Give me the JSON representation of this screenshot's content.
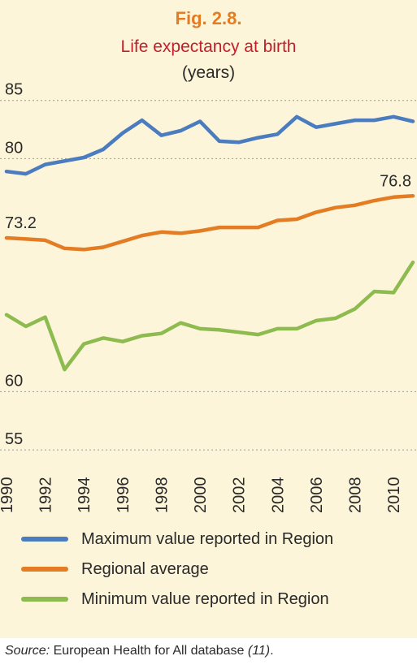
{
  "header": {
    "fig_label": "Fig. 2.8.",
    "title": "Life expectancy at birth",
    "unit": "(years)"
  },
  "chart_data": {
    "type": "line",
    "title": "Life expectancy at birth",
    "ylabel": "(years)",
    "xlabel": "",
    "ylim": [
      52.5,
      87
    ],
    "y_ticks": [
      55,
      60,
      80,
      85
    ],
    "x_ticks": [
      1990,
      1992,
      1994,
      1996,
      1998,
      2000,
      2002,
      2004,
      2006,
      2008,
      2010
    ],
    "grid": true,
    "x": [
      1990,
      1991,
      1992,
      1993,
      1994,
      1995,
      1996,
      1997,
      1998,
      1999,
      2000,
      2001,
      2002,
      2003,
      2004,
      2005,
      2006,
      2007,
      2008,
      2009,
      2010,
      2011
    ],
    "series": [
      {
        "name": "Maximum value reported in Region",
        "color": "#4a7cbf",
        "values": [
          78.9,
          78.7,
          79.5,
          79.8,
          80.1,
          80.8,
          82.2,
          83.3,
          82.0,
          82.4,
          83.2,
          81.5,
          81.4,
          81.8,
          82.1,
          83.6,
          82.7,
          83.0,
          83.3,
          83.3,
          83.6,
          83.2
        ]
      },
      {
        "name": "Regional average",
        "color": "#e37c22",
        "values": [
          73.2,
          73.1,
          73.0,
          72.3,
          72.2,
          72.4,
          72.9,
          73.4,
          73.7,
          73.6,
          73.8,
          74.1,
          74.1,
          74.1,
          74.7,
          74.8,
          75.4,
          75.8,
          76.0,
          76.4,
          76.7,
          76.8
        ]
      },
      {
        "name": "Minimum value reported in Region",
        "color": "#8dbb4f",
        "values": [
          66.6,
          65.6,
          66.4,
          61.9,
          64.1,
          64.6,
          64.3,
          64.8,
          65.0,
          65.9,
          65.4,
          65.3,
          65.1,
          64.9,
          65.4,
          65.4,
          66.1,
          66.3,
          67.1,
          68.6,
          68.5,
          71.1
        ]
      }
    ],
    "data_labels": [
      {
        "series": 1,
        "index": 0,
        "text": "73.2"
      },
      {
        "series": 1,
        "index": 21,
        "text": "76.8"
      }
    ],
    "legend": "bottom"
  },
  "legend": [
    {
      "label": "Maximum value reported in Region",
      "color": "#4a7cbf"
    },
    {
      "label": "Regional average",
      "color": "#e37c22"
    },
    {
      "label": "Minimum value reported in Region",
      "color": "#8dbb4f"
    }
  ],
  "source": {
    "prefix": "Source:",
    "text": " European Health for All database ",
    "ref": "(11)",
    "suffix": "."
  }
}
